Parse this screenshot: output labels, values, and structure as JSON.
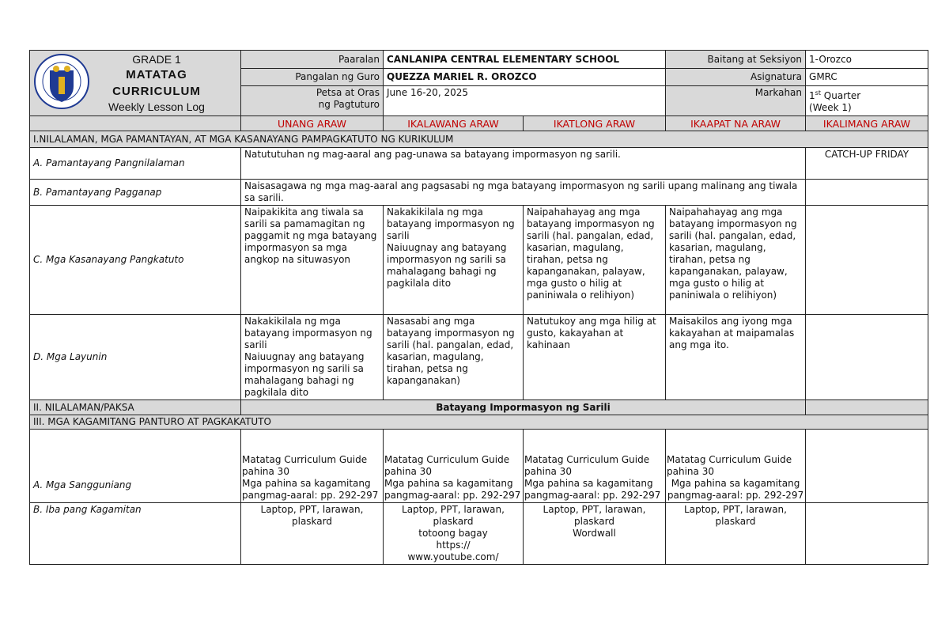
{
  "header": {
    "logo_text": "KAGAWARAN NG EDUKASYON",
    "grade": "GRADE 1",
    "curriculum_1": "MATATAG",
    "curriculum_2": "CURRICULUM",
    "log_type": "Weekly Lesson Log",
    "school_label": "Paaralan",
    "school": "CANLANIPA CENTRAL ELEMENTARY SCHOOL",
    "grade_section_label": "Baitang at Seksiyon",
    "grade_section": "1-Orozco",
    "teacher_label": "Pangalan ng Guro",
    "teacher": "QUEZZA MARIEL R. OROZCO",
    "subject_label": "Asignatura",
    "subject": "GMRC",
    "date_label_1": "Petsa at Oras",
    "date_label_2": "ng Pagtuturo",
    "date": "June 16-20, 2025",
    "quarter_label": "Markahan",
    "quarter_num": "1",
    "quarter_sup": "st",
    "quarter_word": " Quarter",
    "week": "(Week 1)"
  },
  "days": [
    "UNANG ARAW",
    "IKALAWANG ARAW",
    "IKATLONG ARAW",
    "IKAAPAT NA ARAW",
    "IKALIMANG ARAW"
  ],
  "section1": {
    "title": "I.NILALAMAN, MGA PAMANTAYAN, AT MGA KASANAYANG PAMPAGKATUTO NG KURIKULUM",
    "a_label": "A. Pamantayang Pangnilalaman",
    "a_text": "Natututuhan ng mag-aaral ang pag-unawa sa batayang impormasyon ng sarili.",
    "friday": "CATCH-UP FRIDAY",
    "b_label": "B. Pamantayang Pagganap",
    "b_text": "Naisasagawa ng mga mag-aaral ang pagsasabi ng mga batayang impormasyon ng sarili upang malinang ang tiwala sa sarili.",
    "c_label": "C. Mga Kasanayang Pangkatuto",
    "c_cells": [
      "Naipakikita ang tiwala sa sarili sa pamamagitan ng paggamit ng mga batayang impormasyon sa mga angkop na situwasyon",
      "Nakakikilala ng mga batayang impormasyon ng sarili\nNaiuugnay ang batayang impormasyon ng sarili sa mahalagang bahagi ng pagkilala dito",
      "Naipahahayag ang mga batayang impormasyon ng sarili (hal. pangalan, edad, kasarian, magulang, tirahan, petsa ng kapanganakan, palayaw, mga gusto o hilig at paniniwala o relihiyon)",
      "Naipahahayag ang mga batayang impormasyon ng sarili (hal. pangalan, edad, kasarian, magulang, tirahan, petsa ng kapanganakan, palayaw, mga gusto o hilig at paniniwala o relihiyon)"
    ],
    "d_label": "D. Mga Layunin",
    "d_cells": [
      "Nakakikilala ng mga batayang impormasyon ng sarili\nNaiuugnay ang batayang impormasyon ng sarili sa mahalagang bahagi ng pagkilala dito",
      "Nasasabi ang mga batayang impormasyon ng sarili (hal. pangalan, edad, kasarian, magulang, tirahan, petsa ng kapanganakan)",
      "Natutukoy ang mga hilig at gusto, kakayahan at kahinaan",
      "Maisakilos ang iyong mga kakayahan at maipamalas ang mga ito."
    ]
  },
  "section2": {
    "title": "II. NILALAMAN/PAKSA",
    "content": "Batayang Impormasyon ng Sarili"
  },
  "section3": {
    "title": "III. MGA KAGAMITANG PANTURO AT PAGKAKATUTO",
    "a_label": "A. Mga Sangguniang",
    "a_cells": [
      "Matatag Curriculum Guide pahina 30\nMga pahina sa kagamitang pangmag-aaral: pp. 292-297",
      "Matatag Curriculum Guide pahina 30\nMga pahina sa kagamitang pangmag-aaral: pp. 292-297",
      "Matatag Curriculum Guide pahina 30\nMga pahina sa kagamitang pangmag-aaral: pp. 292-297",
      "Matatag Curriculum Guide pahina 30"
    ],
    "a_cell4_center": "Mga pahina sa kagamitang pangmag-aaral: pp. 292-297",
    "b_label": "B. Iba pang Kagamitan",
    "b_cells": [
      "Laptop, PPT, larawan, plaskard",
      "Laptop, PPT, larawan, plaskard\ntotoong bagay\nhttps://\nwww.youtube.com/",
      "Laptop, PPT, larawan, plaskard\nWordwall",
      "Laptop, PPT, larawan, plaskard"
    ]
  },
  "colors": {
    "header_gray": "#d9d9d9",
    "day_red": "#c00000",
    "seal_blue": "#1f3a93"
  }
}
